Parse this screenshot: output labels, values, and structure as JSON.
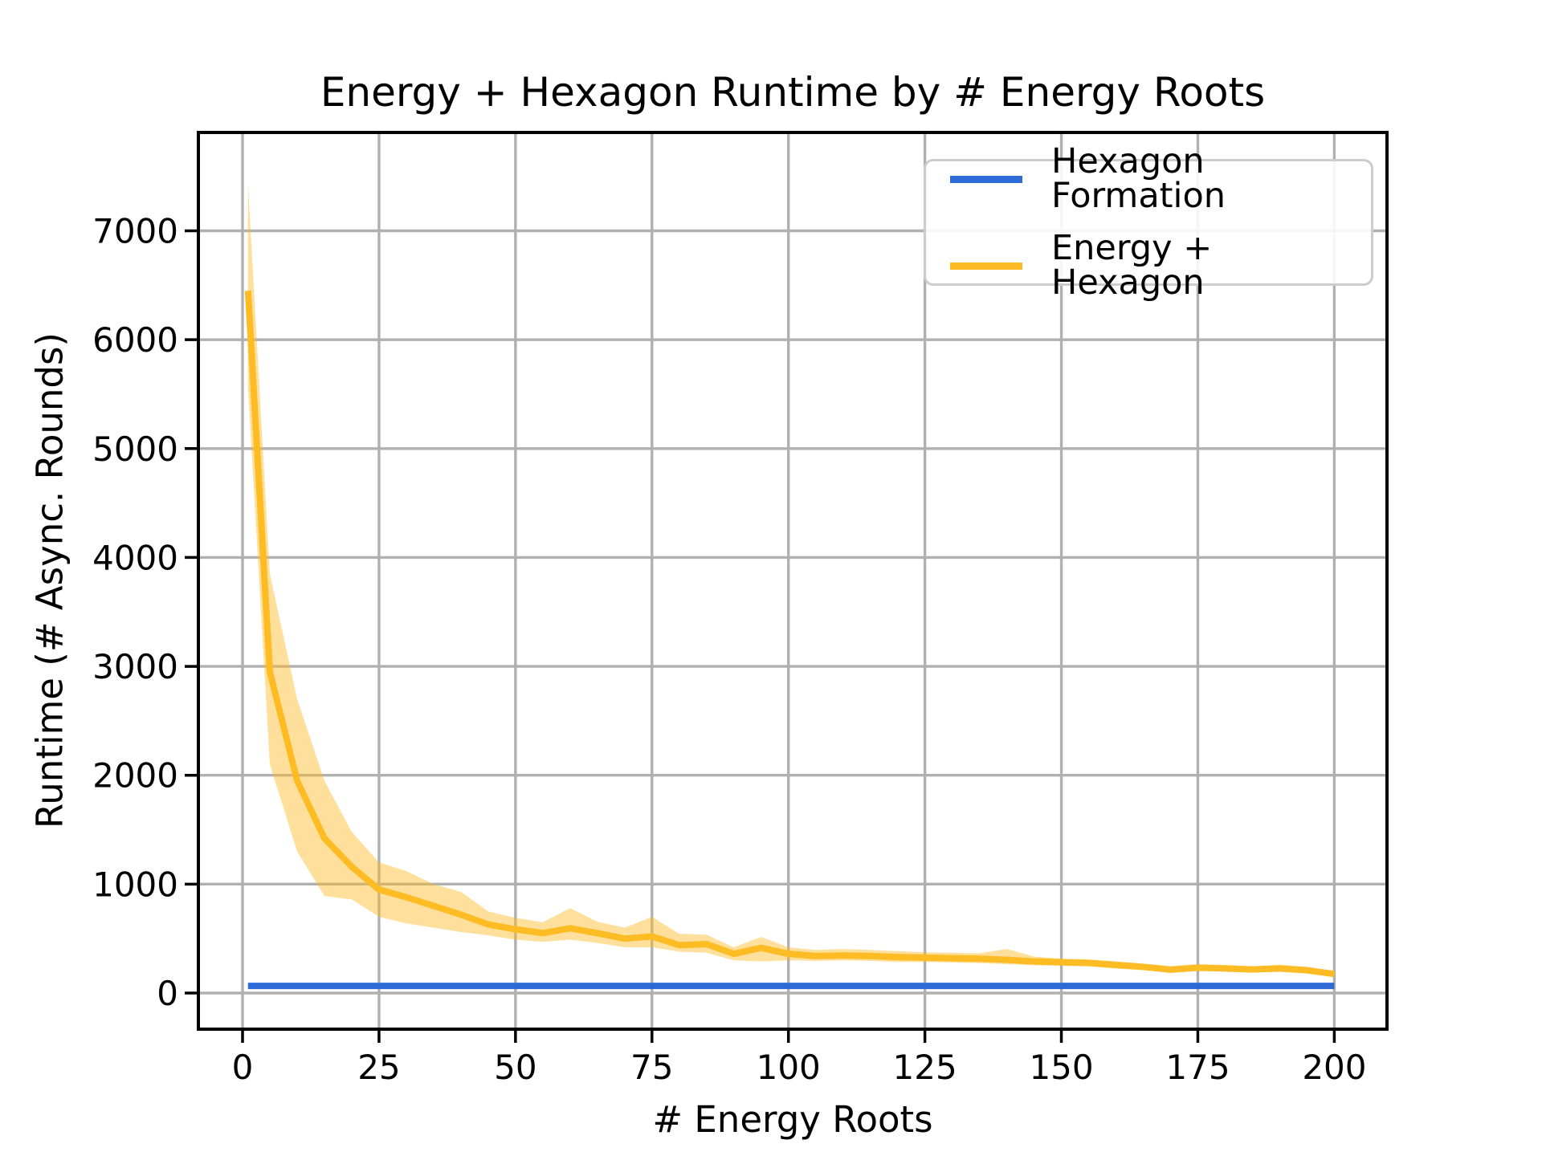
{
  "title": "Energy + Hexagon Runtime by # Energy Roots",
  "x_axis": {
    "label": "# Energy Roots",
    "ticks": [
      0,
      25,
      50,
      75,
      100,
      125,
      150,
      175,
      200
    ]
  },
  "y_axis": {
    "label": "Runtime (# Async. Rounds)",
    "ticks": [
      0,
      1000,
      2000,
      3000,
      4000,
      5000,
      6000,
      7000
    ]
  },
  "legend": {
    "position": "upper right",
    "items": [
      {
        "label": "Hexagon Formation",
        "color": "#2c6bd8"
      },
      {
        "label": "Energy + Hexagon",
        "color": "#fdbb24"
      }
    ]
  },
  "colors": {
    "hexagon_line": "#2c6bd8",
    "energy_line": "#fdbb24",
    "energy_band_fill": "rgba(253,187,36,0.45)",
    "grid": "#b0b0b0",
    "spine": "#000000"
  },
  "chart_data": {
    "type": "line",
    "title": "Energy + Hexagon Runtime by # Energy Roots",
    "xlabel": "# Energy Roots",
    "ylabel": "Runtime (# Async. Rounds)",
    "xlim": [
      -9,
      210
    ],
    "ylim": [
      -332,
      7903
    ],
    "grid": true,
    "legend_position": "upper right",
    "x": [
      1,
      5,
      10,
      15,
      20,
      25,
      30,
      35,
      40,
      45,
      50,
      55,
      60,
      65,
      70,
      75,
      80,
      85,
      90,
      95,
      100,
      105,
      110,
      115,
      120,
      125,
      130,
      135,
      140,
      145,
      150,
      155,
      160,
      165,
      170,
      175,
      180,
      185,
      190,
      195,
      200
    ],
    "series": [
      {
        "name": "Hexagon Formation",
        "color": "#2c6bd8",
        "values": [
          65,
          65,
          65,
          65,
          65,
          65,
          65,
          65,
          65,
          65,
          65,
          65,
          65,
          65,
          65,
          65,
          65,
          65,
          65,
          65,
          65,
          65,
          65,
          65,
          65,
          65,
          65,
          65,
          65,
          65,
          65,
          65,
          65,
          65,
          65,
          65,
          65,
          65,
          65,
          65,
          65
        ]
      },
      {
        "name": "Energy + Hexagon",
        "color": "#fdbb24",
        "values": [
          6450,
          2950,
          1950,
          1420,
          1160,
          950,
          880,
          800,
          720,
          630,
          585,
          550,
          595,
          550,
          500,
          520,
          440,
          450,
          360,
          415,
          360,
          340,
          345,
          340,
          330,
          325,
          320,
          315,
          305,
          290,
          283,
          276,
          258,
          240,
          215,
          232,
          226,
          217,
          226,
          209,
          175
        ],
        "band_low": [
          5550,
          2100,
          1300,
          890,
          860,
          700,
          640,
          600,
          560,
          530,
          490,
          470,
          490,
          460,
          420,
          420,
          380,
          370,
          300,
          290,
          300,
          295,
          300,
          295,
          285,
          285,
          280,
          275,
          265,
          255,
          250,
          245,
          225,
          210,
          190,
          205,
          200,
          190,
          195,
          180,
          155
        ],
        "band_high": [
          7430,
          3850,
          2700,
          1950,
          1480,
          1200,
          1120,
          1000,
          930,
          750,
          690,
          650,
          780,
          655,
          600,
          700,
          545,
          535,
          420,
          515,
          420,
          395,
          405,
          395,
          385,
          375,
          370,
          365,
          405,
          335,
          315,
          310,
          290,
          270,
          245,
          265,
          258,
          245,
          260,
          240,
          200
        ],
        "band_alpha": 0.45
      }
    ]
  }
}
